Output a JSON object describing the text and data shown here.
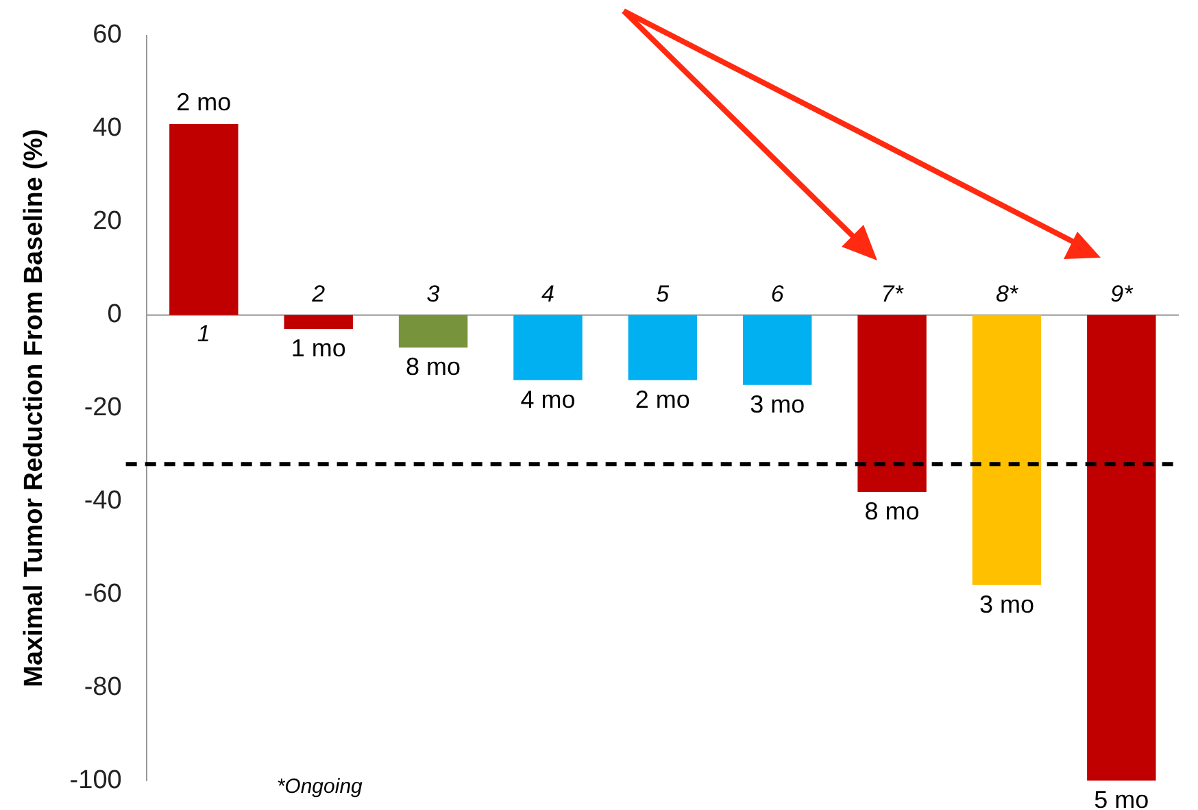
{
  "chart_data": {
    "type": "bar",
    "ylabel": "Maximal Tumor Reduction From Baseline (%)",
    "categories": [
      "1",
      "2",
      "3",
      "4",
      "5",
      "6",
      "7*",
      "8*",
      "9*"
    ],
    "values": [
      41,
      -3,
      -7,
      -14,
      -14,
      -15,
      -38,
      -58,
      -100
    ],
    "colors": [
      "#c00000",
      "#c00000",
      "#77933c",
      "#00b0f0",
      "#00b0f0",
      "#00b0f0",
      "#c00000",
      "#ffc000",
      "#c00000"
    ],
    "ylim": [
      -100,
      60
    ],
    "yticks": [
      -100,
      -80,
      -60,
      -40,
      -20,
      0,
      20,
      40,
      60
    ],
    "grid": false,
    "legend": false,
    "ref_lines": [
      {
        "axis": "y",
        "value": -32,
        "color": "#000000",
        "line_style": "dashed"
      }
    ],
    "annotations": [
      {
        "text": "2 mo",
        "x": "1",
        "y": 41
      },
      {
        "text": "1 mo",
        "x": "2",
        "y": -3
      },
      {
        "text": "8 mo",
        "x": "3",
        "y": -7
      },
      {
        "text": "4 mo",
        "x": "4",
        "y": -14
      },
      {
        "text": "2 mo",
        "x": "5",
        "y": -14
      },
      {
        "text": "3 mo",
        "x": "6",
        "y": -15
      },
      {
        "text": "8 mo",
        "x": "7*",
        "y": -38
      },
      {
        "text": "3 mo",
        "x": "8*",
        "y": -58
      },
      {
        "text": "5 mo",
        "x": "9*",
        "y": -100
      },
      "*Ongoing"
    ]
  }
}
